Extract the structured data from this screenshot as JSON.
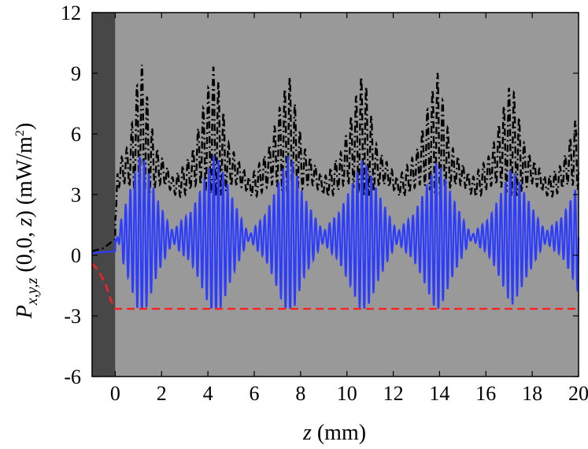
{
  "chart_data": {
    "type": "line",
    "xlabel": {
      "var": "z",
      "unit": " (mm)"
    },
    "ylabel": {
      "main": "P",
      "sub": "x,y,z",
      "args": " (0,0, ",
      "var": "z",
      "close": ")",
      "unit": " (mW/m",
      "sup": "2",
      "unit_close": ")"
    },
    "xlim": [
      -1,
      20
    ],
    "ylim": [
      -6,
      12
    ],
    "x_ticks": [
      0,
      2,
      4,
      6,
      8,
      10,
      12,
      14,
      16,
      18,
      20
    ],
    "x_tick_labels": [
      "0",
      "2",
      "4",
      "6",
      "8",
      "10",
      "12",
      "14",
      "16",
      "18",
      "20"
    ],
    "y_ticks": [
      -6,
      -3,
      0,
      3,
      6,
      9,
      12
    ],
    "y_tick_labels": [
      "-6",
      "-3",
      "0",
      "3",
      "6",
      "9",
      "12"
    ],
    "background_regions": [
      {
        "x_range": [
          -1,
          0
        ],
        "color": "#474747"
      },
      {
        "x_range": [
          0,
          20
        ],
        "color": "#999999"
      }
    ],
    "series": [
      {
        "style": "dash-dot",
        "color": "#000000",
        "envelope": [
          [
            -1,
            0.2
          ],
          [
            -0.5,
            0.35
          ],
          [
            0,
            0.8
          ],
          [
            0.1,
            4.5
          ],
          [
            0.6,
            5.5
          ],
          [
            1.1,
            9.8
          ],
          [
            1.7,
            5.5
          ],
          [
            2.5,
            3.8
          ],
          [
            3.3,
            5.0
          ],
          [
            4.3,
            9.6
          ],
          [
            4.9,
            5.5
          ],
          [
            5.8,
            3.8
          ],
          [
            6.6,
            5.2
          ],
          [
            7.5,
            9.0
          ],
          [
            8.1,
            5.4
          ],
          [
            9.0,
            3.8
          ],
          [
            9.8,
            5.2
          ],
          [
            10.7,
            9.2
          ],
          [
            11.3,
            5.3
          ],
          [
            12.2,
            3.8
          ],
          [
            13.0,
            5.1
          ],
          [
            13.9,
            9.1
          ],
          [
            14.5,
            5.4
          ],
          [
            15.4,
            3.8
          ],
          [
            16.2,
            5.0
          ],
          [
            17.1,
            8.7
          ],
          [
            17.7,
            5.3
          ],
          [
            18.6,
            3.8
          ],
          [
            19.3,
            4.5
          ],
          [
            20,
            7.2
          ]
        ],
        "baseline": 3.2,
        "oscillation_period": 0.22
      },
      {
        "style": "solid",
        "color": "#2b3cff",
        "envelope": [
          [
            -1,
            0.1
          ],
          [
            0,
            0.2
          ],
          [
            0.3,
            2.5
          ],
          [
            1.1,
            5.3
          ],
          [
            1.8,
            2.8
          ],
          [
            2.5,
            1.2
          ],
          [
            3.3,
            3.0
          ],
          [
            4.3,
            5.3
          ],
          [
            5.0,
            3.0
          ],
          [
            5.8,
            1.0
          ],
          [
            6.6,
            3.0
          ],
          [
            7.5,
            5.3
          ],
          [
            8.1,
            3.0
          ],
          [
            9.0,
            1.2
          ],
          [
            9.8,
            3.2
          ],
          [
            10.7,
            5.0
          ],
          [
            11.3,
            3.2
          ],
          [
            12.2,
            1.2
          ],
          [
            13.0,
            3.0
          ],
          [
            13.9,
            4.9
          ],
          [
            14.5,
            3.0
          ],
          [
            15.4,
            1.0
          ],
          [
            16.2,
            2.5
          ],
          [
            17.1,
            4.5
          ],
          [
            17.7,
            3.0
          ],
          [
            18.6,
            1.2
          ],
          [
            19.3,
            2.5
          ],
          [
            20,
            4.0
          ]
        ],
        "center": 0.9,
        "oscillation_period": 0.2
      },
      {
        "style": "dashed",
        "color": "#ff2020",
        "points": [
          [
            -1,
            -0.4
          ],
          [
            -0.7,
            -0.8
          ],
          [
            -0.4,
            -1.5
          ],
          [
            -0.2,
            -2.2
          ],
          [
            0,
            -2.65
          ],
          [
            20,
            -2.65
          ]
        ]
      }
    ]
  }
}
